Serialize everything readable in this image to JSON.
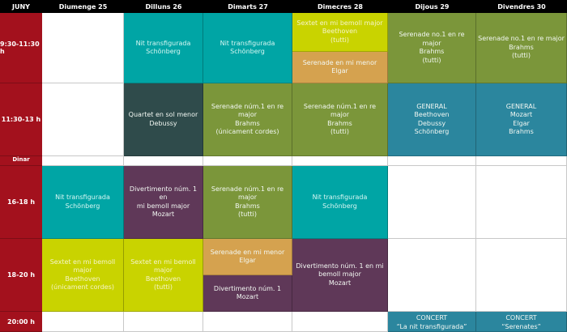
{
  "header": {
    "corner": "JUNY",
    "days": [
      "Diumenge 25",
      "Dilluns 26",
      "Dimarts 27",
      "Dimecres 28",
      "Dijous 29",
      "Divendres 30"
    ]
  },
  "slots": [
    "9:30-11:30 h",
    "11:30-13 h",
    "Dinar",
    "16-18 h",
    "18-20 h",
    "20:00 h"
  ],
  "colors": {
    "time_column": "#a3111d",
    "header": "#000000",
    "teal": "#00a5a5",
    "slate": "#2f4b4b",
    "olive": "#7b963a",
    "lime": "#c9d300",
    "ochre": "#d5a24f",
    "plum": "#5f3858",
    "blue": "#2b869e"
  },
  "events": [
    {
      "day": 1,
      "slot": 0,
      "color": "teal",
      "lines": [
        "Nit transfigurada",
        "Schönberg"
      ]
    },
    {
      "day": 2,
      "slot": 0,
      "color": "teal",
      "lines": [
        "Nit transfigurada",
        "Schönberg"
      ]
    },
    {
      "day": 3,
      "slot": 0,
      "part": "top",
      "color": "lime",
      "lines": [
        "Sextet en mi bemoll major",
        "Beethoven",
        "(tutti)"
      ]
    },
    {
      "day": 3,
      "slot": 0,
      "part": "bottom",
      "color": "ochre",
      "lines": [
        "Serenade en mi menor",
        "Elgar"
      ]
    },
    {
      "day": 4,
      "slot": 0,
      "color": "olive",
      "lines": [
        "Serenade no.1 en re major",
        "Brahms",
        "(tutti)"
      ]
    },
    {
      "day": 5,
      "slot": 0,
      "color": "olive",
      "lines": [
        "Serenade no.1 en re major",
        "Brahms",
        "(tutti)"
      ]
    },
    {
      "day": 1,
      "slot": 1,
      "color": "slate",
      "lines": [
        "Quartet en sol menor",
        "Debussy"
      ]
    },
    {
      "day": 2,
      "slot": 1,
      "color": "olive",
      "lines": [
        "Serenade núm.1 en re major",
        "Brahms",
        "(únicament cordes)"
      ]
    },
    {
      "day": 3,
      "slot": 1,
      "color": "olive",
      "lines": [
        "Serenade núm.1 en re major",
        "Brahms",
        "(tutti)"
      ]
    },
    {
      "day": 4,
      "slot": 1,
      "color": "blue",
      "lines": [
        "GENERAL",
        "Beethoven",
        "Debussy",
        "Schönberg"
      ]
    },
    {
      "day": 5,
      "slot": 1,
      "color": "blue",
      "lines": [
        "GENERAL",
        "Mozart",
        "Elgar",
        "Brahms"
      ]
    },
    {
      "day": 0,
      "slot": 3,
      "color": "teal",
      "lines": [
        "Nit transfigurada",
        "Schönberg"
      ]
    },
    {
      "day": 1,
      "slot": 3,
      "color": "plum",
      "lines": [
        "Divertimento núm. 1 en",
        "mi bemoll major",
        "Mozart"
      ]
    },
    {
      "day": 2,
      "slot": 3,
      "color": "olive",
      "lines": [
        "Serenade núm.1 en re major",
        "Brahms",
        "(tutti)"
      ]
    },
    {
      "day": 3,
      "slot": 3,
      "color": "teal",
      "lines": [
        "Nit transfigurada",
        "Schönberg"
      ]
    },
    {
      "day": 0,
      "slot": 4,
      "color": "lime",
      "lines": [
        "Sextet en mi bemoll major",
        "Beethoven",
        "(únicament cordes)"
      ]
    },
    {
      "day": 1,
      "slot": 4,
      "color": "lime",
      "lines": [
        "Sextet en mi bemoll",
        "major",
        "Beethoven",
        "(tutti)"
      ]
    },
    {
      "day": 2,
      "slot": 4,
      "part": "top",
      "color": "ochre",
      "lines": [
        "Serenade en mi menor",
        "Elgar"
      ]
    },
    {
      "day": 2,
      "slot": 4,
      "part": "bottom",
      "color": "plum",
      "lines": [
        "Divertimento núm. 1",
        "Mozart"
      ]
    },
    {
      "day": 3,
      "slot": 4,
      "color": "plum",
      "lines": [
        "Divertimento núm. 1 en mi",
        "bemoll major",
        "Mozart"
      ]
    },
    {
      "day": 4,
      "slot": 5,
      "color": "blue",
      "lines": [
        "CONCERT",
        "“La nit transfigurada”"
      ]
    },
    {
      "day": 5,
      "slot": 5,
      "color": "blue",
      "lines": [
        "CONCERT",
        "“Serenates”"
      ]
    }
  ]
}
